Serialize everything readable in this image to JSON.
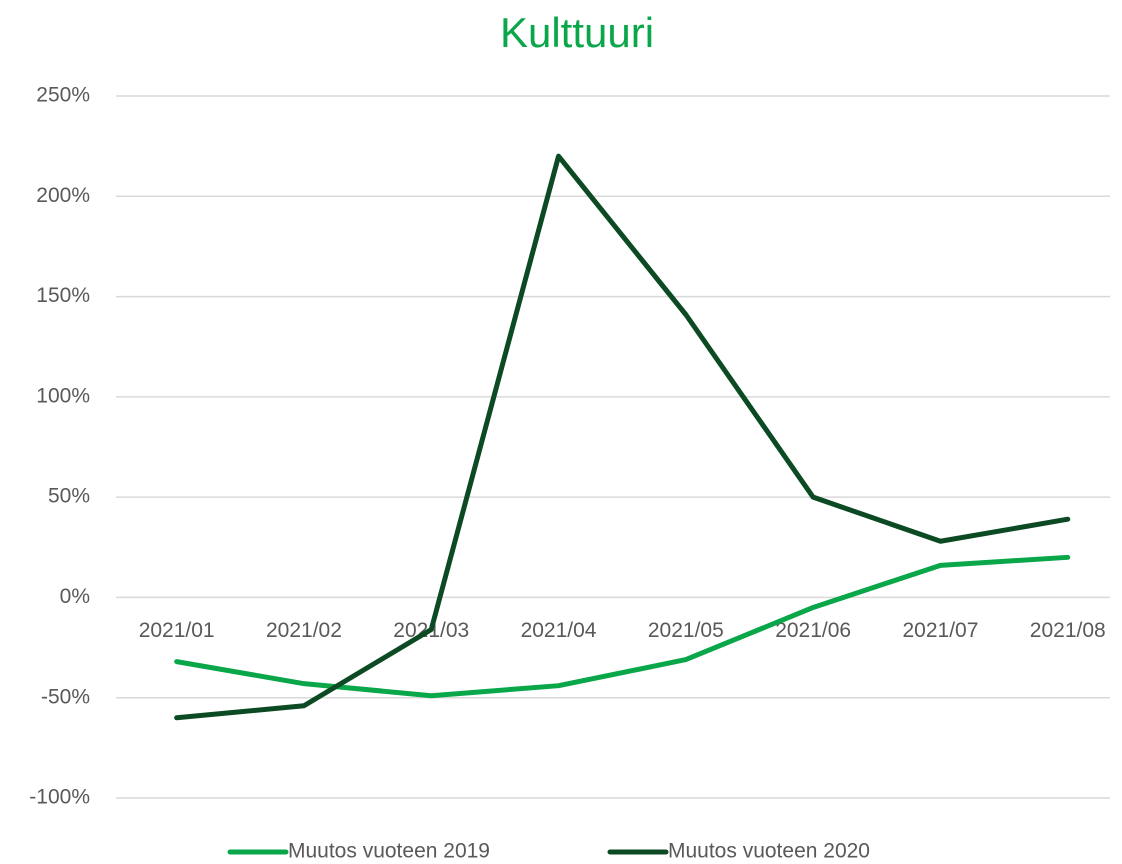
{
  "chart_data": {
    "type": "line",
    "title": "Kulttuuri",
    "categories": [
      "2021/01",
      "2021/02",
      "2021/03",
      "2021/04",
      "2021/05",
      "2021/06",
      "2021/07",
      "2021/08"
    ],
    "series": [
      {
        "name": "Muutos vuoteen 2019",
        "color": "#0aa74a",
        "values": [
          -32,
          -43,
          -49,
          -44,
          -31,
          -5,
          16,
          20
        ]
      },
      {
        "name": "Muutos vuoteen 2020",
        "color": "#0b4a22",
        "values": [
          -60,
          -54,
          -16,
          220,
          141,
          50,
          28,
          39
        ]
      }
    ],
    "ylim": [
      -100,
      250
    ],
    "yticks": [
      {
        "value": -100,
        "label": "-100%"
      },
      {
        "value": -50,
        "label": "-50%"
      },
      {
        "value": 0,
        "label": "0%"
      },
      {
        "value": 50,
        "label": "50%"
      },
      {
        "value": 100,
        "label": "100%"
      },
      {
        "value": 150,
        "label": "150%"
      },
      {
        "value": 200,
        "label": "200%"
      },
      {
        "value": 250,
        "label": "250%"
      }
    ],
    "grid": true,
    "legend": "bottom"
  }
}
